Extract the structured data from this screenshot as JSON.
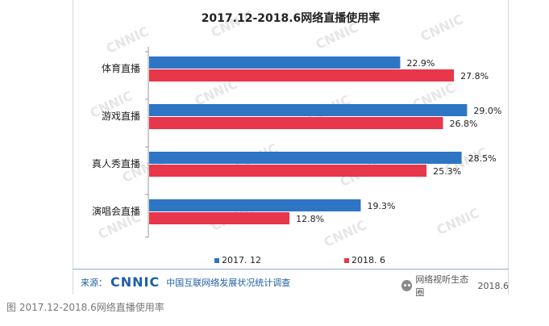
{
  "chart_data": {
    "type": "bar",
    "orientation": "horizontal",
    "title": "2017.12-2018.6网络直播使用率",
    "categories": [
      "体育直播",
      "游戏直播",
      "真人秀直播",
      "演唱会直播"
    ],
    "series": [
      {
        "name": "2017. 12",
        "values": [
          22.9,
          29.0,
          28.5,
          19.3
        ],
        "labels": [
          "22.9%",
          "29.0%",
          "28.5%",
          "19.3%"
        ],
        "color": "#2e75c4"
      },
      {
        "name": "2018. 6",
        "values": [
          27.8,
          26.8,
          25.3,
          12.8
        ],
        "labels": [
          "27.8%",
          "26.8%",
          "25.3%",
          "12.8%"
        ],
        "color": "#e8364a"
      }
    ],
    "xlim": [
      0,
      30
    ],
    "grid": false,
    "legend_position": "bottom"
  },
  "watermark_text": "CNNIC",
  "footer": {
    "source_label": "来源：",
    "logo_text": "CNNIC",
    "org_name": "中国互联网络发展状况统计调查",
    "wechat_text": "网络视听生态圈",
    "year_text": "2018.6"
  },
  "caption": "图 2017.12-2018.6网络直播使用率"
}
